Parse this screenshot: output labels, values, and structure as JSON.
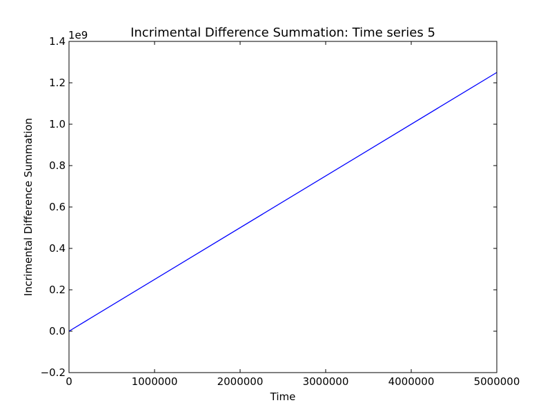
{
  "chart_data": {
    "type": "line",
    "title": "Incrimental Difference Summation: Time series 5",
    "xlabel": "Time",
    "ylabel": "Incrimental Difference Summation",
    "y_offset_label": "1e9",
    "xlim": [
      0,
      5000000
    ],
    "ylim": [
      -0.2,
      1.4
    ],
    "xticks": [
      0,
      1000000,
      2000000,
      3000000,
      4000000,
      5000000
    ],
    "xtick_labels": [
      "0",
      "1000000",
      "2000000",
      "3000000",
      "4000000",
      "5000000"
    ],
    "yticks": [
      -0.2,
      0.0,
      0.2,
      0.4,
      0.6,
      0.8,
      1.0,
      1.2,
      1.4
    ],
    "ytick_labels": [
      "−0.2",
      "0.0",
      "0.2",
      "0.4",
      "0.6",
      "0.8",
      "1.0",
      "1.2",
      "1.4"
    ],
    "grid": false,
    "legend": "none",
    "series": [
      {
        "color": "#0000ff",
        "x": [
          0,
          5000000
        ],
        "y": [
          0.0,
          1.25
        ]
      }
    ]
  }
}
